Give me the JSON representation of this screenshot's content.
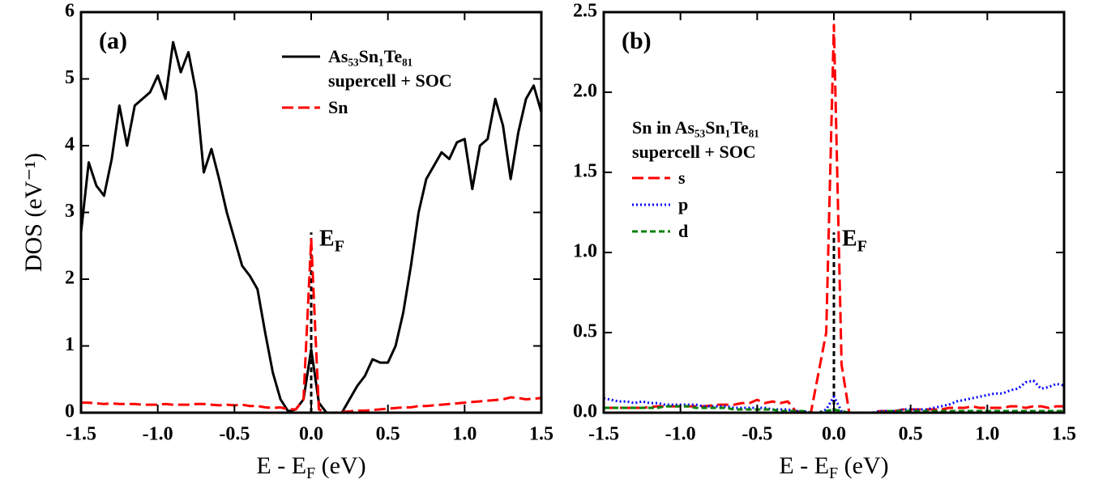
{
  "chart_data": [
    {
      "type": "line",
      "label": "(a)",
      "ylabel": "DOS (eV⁻¹)",
      "xlabel": [
        "E - E",
        "F",
        " (eV)"
      ],
      "x": [
        -1.5,
        -1.45,
        -1.4,
        -1.35,
        -1.3,
        -1.25,
        -1.2,
        -1.15,
        -1.1,
        -1.05,
        -1.0,
        -0.95,
        -0.9,
        -0.85,
        -0.8,
        -0.75,
        -0.7,
        -0.65,
        -0.6,
        -0.55,
        -0.5,
        -0.45,
        -0.4,
        -0.35,
        -0.3,
        -0.25,
        -0.2,
        -0.15,
        -0.1,
        -0.05,
        0.0,
        0.05,
        0.1,
        0.15,
        0.2,
        0.25,
        0.3,
        0.35,
        0.4,
        0.45,
        0.5,
        0.55,
        0.6,
        0.65,
        0.7,
        0.75,
        0.8,
        0.85,
        0.9,
        0.95,
        1.0,
        1.05,
        1.1,
        1.15,
        1.2,
        1.25,
        1.3,
        1.35,
        1.4,
        1.45,
        1.5
      ],
      "series": [
        {
          "name": "As₅₃Sn₁Te₈₁\nsupercell + SOC",
          "color": "#000000",
          "linestyle": "solid",
          "values": [
            2.7,
            3.75,
            3.4,
            3.25,
            3.8,
            4.6,
            4.0,
            4.6,
            4.7,
            4.8,
            5.05,
            4.7,
            5.55,
            5.1,
            5.4,
            4.8,
            3.6,
            3.95,
            3.5,
            3.0,
            2.6,
            2.2,
            2.05,
            1.85,
            1.2,
            0.6,
            0.2,
            0.02,
            0.05,
            0.2,
            0.95,
            0.15,
            0.0,
            0.0,
            0.0,
            0.2,
            0.4,
            0.55,
            0.8,
            0.75,
            0.75,
            1.0,
            1.5,
            2.2,
            3.0,
            3.5,
            3.7,
            3.9,
            3.8,
            4.05,
            4.1,
            3.35,
            4.0,
            4.1,
            4.7,
            4.3,
            3.5,
            4.2,
            4.7,
            4.9,
            4.5
          ]
        },
        {
          "name": "Sn",
          "color": "#ff0000",
          "linestyle": "dashed",
          "values": [
            0.15,
            0.15,
            0.14,
            0.13,
            0.14,
            0.13,
            0.13,
            0.13,
            0.12,
            0.12,
            0.12,
            0.13,
            0.12,
            0.12,
            0.12,
            0.13,
            0.13,
            0.12,
            0.11,
            0.12,
            0.11,
            0.12,
            0.1,
            0.1,
            0.08,
            0.07,
            0.08,
            0.05,
            0.05,
            0.2,
            2.6,
            0.05,
            0.0,
            0.0,
            0.01,
            0.02,
            0.03,
            0.03,
            0.04,
            0.05,
            0.06,
            0.07,
            0.08,
            0.08,
            0.1,
            0.1,
            0.11,
            0.12,
            0.13,
            0.14,
            0.15,
            0.16,
            0.17,
            0.18,
            0.19,
            0.2,
            0.23,
            0.22,
            0.2,
            0.21,
            0.22
          ]
        }
      ],
      "xlim": [
        -1.5,
        1.5
      ],
      "xticks": [
        -1.5,
        {
          "value": -1,
          "label": "-1.0"
        },
        -0.5,
        {
          "value": 0,
          "label": "0.0"
        },
        0.5,
        {
          "value": 1,
          "label": "1.0"
        },
        1.5
      ],
      "ylim": [
        0,
        6
      ],
      "yticks": [
        0,
        1,
        2,
        3,
        4,
        5,
        6
      ],
      "legend": "upper right",
      "annotation": {
        "text": [
          "E",
          "F"
        ],
        "x": 0
      }
    },
    {
      "type": "line",
      "label": "(b)",
      "xlabel": [
        "E - E",
        "F",
        " (eV)"
      ],
      "legend_title": "Sn in As₅₃Sn₁Te₈₁\nsupercell + SOC",
      "x": [
        -1.5,
        -1.45,
        -1.4,
        -1.35,
        -1.3,
        -1.25,
        -1.2,
        -1.15,
        -1.1,
        -1.05,
        -1.0,
        -0.95,
        -0.9,
        -0.85,
        -0.8,
        -0.75,
        -0.7,
        -0.65,
        -0.6,
        -0.55,
        -0.5,
        -0.45,
        -0.4,
        -0.35,
        -0.3,
        -0.25,
        -0.2,
        -0.15,
        -0.1,
        -0.05,
        0.0,
        0.05,
        0.1,
        0.15,
        0.2,
        0.25,
        0.3,
        0.35,
        0.4,
        0.45,
        0.5,
        0.55,
        0.6,
        0.65,
        0.7,
        0.75,
        0.8,
        0.85,
        0.9,
        0.95,
        1.0,
        1.05,
        1.1,
        1.15,
        1.2,
        1.25,
        1.3,
        1.35,
        1.4,
        1.45,
        1.5
      ],
      "series": [
        {
          "name": "s",
          "color": "#ff0000",
          "linestyle": "dashed",
          "values": [
            0.03,
            0.03,
            0.03,
            0.03,
            0.03,
            0.03,
            0.035,
            0.04,
            0.04,
            0.04,
            0.04,
            0.04,
            0.04,
            0.04,
            0.045,
            0.05,
            0.05,
            0.05,
            0.06,
            0.06,
            0.08,
            0.06,
            0.07,
            0.06,
            0.07,
            0.01,
            0.0,
            0.0,
            0.25,
            0.5,
            2.42,
            0.3,
            0.0,
            0.0,
            0.0,
            0.0,
            0.01,
            0.01,
            0.01,
            0.02,
            0.02,
            0.02,
            0.02,
            0.02,
            0.02,
            0.03,
            0.03,
            0.03,
            0.04,
            0.03,
            0.03,
            0.03,
            0.03,
            0.04,
            0.04,
            0.03,
            0.04,
            0.04,
            0.03,
            0.04,
            0.04
          ]
        },
        {
          "name": "p",
          "color": "#0000ff",
          "linestyle": "dotted",
          "values": [
            0.09,
            0.08,
            0.07,
            0.07,
            0.06,
            0.07,
            0.06,
            0.06,
            0.05,
            0.05,
            0.05,
            0.05,
            0.05,
            0.04,
            0.04,
            0.04,
            0.04,
            0.03,
            0.03,
            0.03,
            0.03,
            0.03,
            0.02,
            0.02,
            0.02,
            0.01,
            0.01,
            0.0,
            0.0,
            0.02,
            0.1,
            0.01,
            0.0,
            0.0,
            0.0,
            0.0,
            0.01,
            0.01,
            0.01,
            0.02,
            0.02,
            0.02,
            0.02,
            0.03,
            0.04,
            0.05,
            0.07,
            0.08,
            0.09,
            0.1,
            0.11,
            0.12,
            0.12,
            0.14,
            0.15,
            0.19,
            0.2,
            0.15,
            0.16,
            0.18,
            0.17
          ]
        },
        {
          "name": "d",
          "color": "#008000",
          "linestyle": "shortdash",
          "values": [
            0.03,
            0.03,
            0.03,
            0.03,
            0.03,
            0.03,
            0.03,
            0.03,
            0.04,
            0.04,
            0.04,
            0.04,
            0.03,
            0.03,
            0.03,
            0.03,
            0.03,
            0.02,
            0.02,
            0.02,
            0.02,
            0.02,
            0.02,
            0.01,
            0.01,
            0.01,
            0.01,
            0.0,
            0.0,
            0.01,
            0.02,
            0.01,
            0.0,
            0.0,
            0.0,
            0.0,
            0.0,
            0.01,
            0.01,
            0.01,
            0.01,
            0.01,
            0.01,
            0.01,
            0.01,
            0.01,
            0.01,
            0.01,
            0.01,
            0.01,
            0.01,
            0.01,
            0.01,
            0.01,
            0.01,
            0.01,
            0.01,
            0.01,
            0.01,
            0.01,
            0.01
          ]
        }
      ],
      "xlim": [
        -1.5,
        1.5
      ],
      "xticks": [
        -1.5,
        {
          "value": -1,
          "label": "-1.0"
        },
        -0.5,
        {
          "value": 0,
          "label": "0.0"
        },
        0.5,
        {
          "value": 1,
          "label": "1.0"
        },
        1.5
      ],
      "ylim": [
        0,
        2.5
      ],
      "yticks": [
        {
          "value": 0,
          "label": "0.0"
        },
        0.5,
        {
          "value": 1,
          "label": "1.0"
        },
        1.5,
        {
          "value": 2,
          "label": "2.0"
        },
        2.5
      ],
      "legend": "upper left",
      "annotation": {
        "text": [
          "E",
          "F"
        ],
        "x": 0
      }
    }
  ]
}
